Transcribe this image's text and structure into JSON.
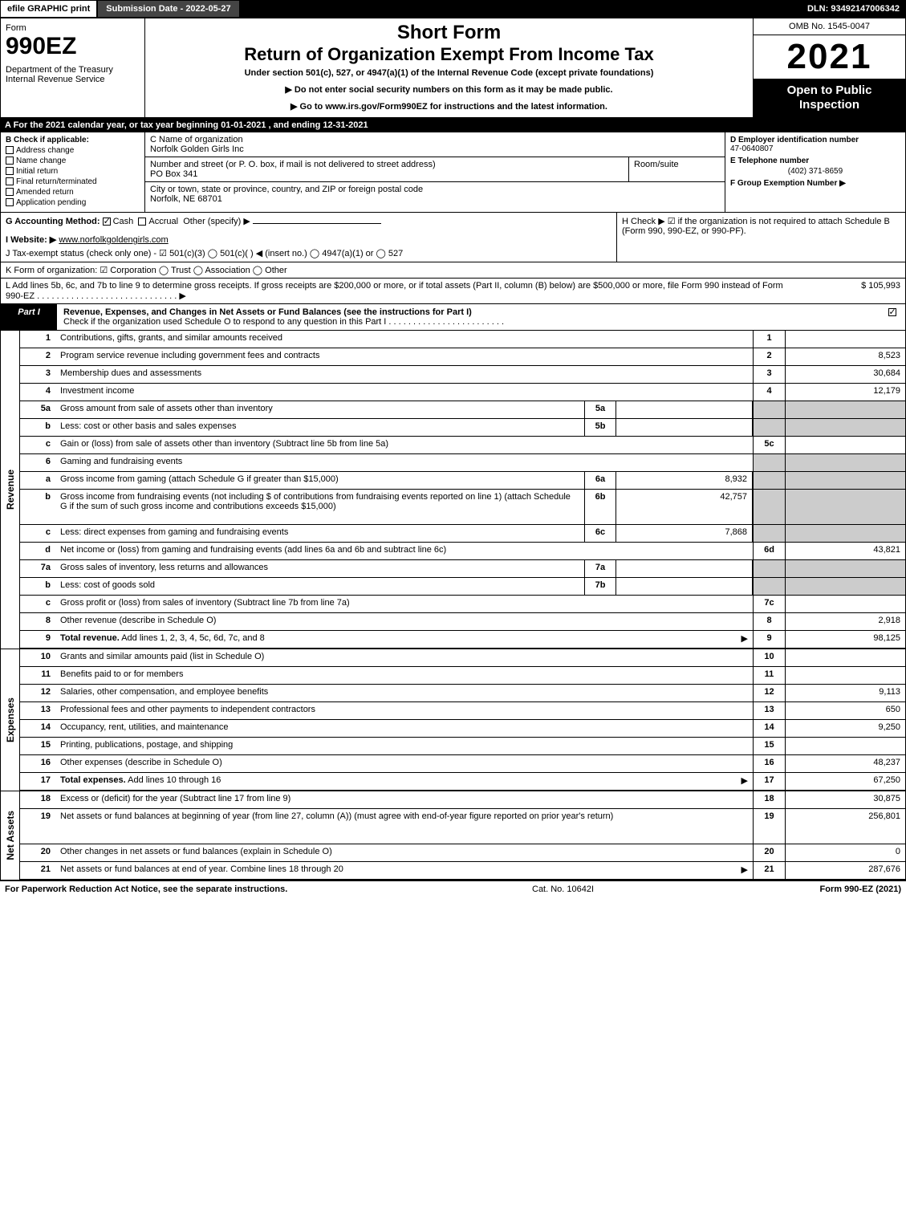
{
  "topbar": {
    "efile": "efile GRAPHIC print",
    "submission": "Submission Date - 2022-05-27",
    "dln": "DLN: 93492147006342"
  },
  "header": {
    "form_word": "Form",
    "form_num": "990EZ",
    "dept": "Department of the Treasury\nInternal Revenue Service",
    "short": "Short Form",
    "return": "Return of Organization Exempt From Income Tax",
    "under": "Under section 501(c), 527, or 4947(a)(1) of the Internal Revenue Code (except private foundations)",
    "note1": "▶ Do not enter social security numbers on this form as it may be made public.",
    "note2": "▶ Go to www.irs.gov/Form990EZ for instructions and the latest information.",
    "omb": "OMB No. 1545-0047",
    "year": "2021",
    "open": "Open to Public Inspection"
  },
  "rowA": "A  For the 2021 calendar year, or tax year beginning 01-01-2021 , and ending 12-31-2021",
  "colB": {
    "title": "B  Check if applicable:",
    "items": [
      "Address change",
      "Name change",
      "Initial return",
      "Final return/terminated",
      "Amended return",
      "Application pending"
    ]
  },
  "colC": {
    "name_label": "C Name of organization",
    "name": "Norfolk Golden Girls Inc",
    "street_label": "Number and street (or P. O. box, if mail is not delivered to street address)",
    "street": "PO Box 341",
    "room_label": "Room/suite",
    "city_label": "City or town, state or province, country, and ZIP or foreign postal code",
    "city": "Norfolk, NE  68701"
  },
  "colD": {
    "ein_label": "D Employer identification number",
    "ein": "47-0640807",
    "tel_label": "E Telephone number",
    "tel": "(402) 371-8659",
    "group_label": "F Group Exemption Number  ▶"
  },
  "rowG": {
    "label": "G Accounting Method:",
    "cash": "Cash",
    "accrual": "Accrual",
    "other": "Other (specify) ▶"
  },
  "rowH": "H  Check ▶ ☑ if the organization is not required to attach Schedule B (Form 990, 990-EZ, or 990-PF).",
  "rowI": {
    "label": "I Website: ▶",
    "value": "www.norfolkgoldengirls.com"
  },
  "rowJ": "J Tax-exempt status (check only one) - ☑ 501(c)(3)  ◯ 501(c)(  ) ◀ (insert no.)  ◯ 4947(a)(1) or  ◯ 527",
  "rowK": "K Form of organization:  ☑ Corporation  ◯ Trust  ◯ Association  ◯ Other",
  "rowL": {
    "text": "L Add lines 5b, 6c, and 7b to line 9 to determine gross receipts. If gross receipts are $200,000 or more, or if total assets (Part II, column (B) below) are $500,000 or more, file Form 990 instead of Form 990-EZ . . . . . . . . . . . . . . . . . . . . . . . . . . . . . ▶",
    "amount": "$ 105,993"
  },
  "part1": {
    "tab": "Part I",
    "title": "Revenue, Expenses, and Changes in Net Assets or Fund Balances (see the instructions for Part I)",
    "sub": "Check if the organization used Schedule O to respond to any question in this Part I . . . . . . . . . . . . . . . . . . . . . . . .",
    "checked": true
  },
  "side_labels": {
    "revenue": "Revenue",
    "expenses": "Expenses",
    "netassets": "Net Assets"
  },
  "lines": [
    {
      "n": "1",
      "desc": "Contributions, gifts, grants, and similar amounts received",
      "rnum": "1",
      "rval": ""
    },
    {
      "n": "2",
      "desc": "Program service revenue including government fees and contracts",
      "rnum": "2",
      "rval": "8,523"
    },
    {
      "n": "3",
      "desc": "Membership dues and assessments",
      "rnum": "3",
      "rval": "30,684"
    },
    {
      "n": "4",
      "desc": "Investment income",
      "rnum": "4",
      "rval": "12,179"
    },
    {
      "n": "5a",
      "desc": "Gross amount from sale of assets other than inventory",
      "mid": "5a",
      "midval": "",
      "shade": true
    },
    {
      "n": "b",
      "desc": "Less: cost or other basis and sales expenses",
      "mid": "5b",
      "midval": "",
      "shade": true
    },
    {
      "n": "c",
      "desc": "Gain or (loss) from sale of assets other than inventory (Subtract line 5b from line 5a)",
      "rnum": "5c",
      "rval": ""
    },
    {
      "n": "6",
      "desc": "Gaming and fundraising events",
      "shade": true,
      "norline": true
    },
    {
      "n": "a",
      "desc": "Gross income from gaming (attach Schedule G if greater than $15,000)",
      "mid": "6a",
      "midval": "8,932",
      "shade": true
    },
    {
      "n": "b",
      "desc": "Gross income from fundraising events (not including $                    of contributions from fundraising events reported on line 1) (attach Schedule G if the sum of such gross income and contributions exceeds $15,000)",
      "mid": "6b",
      "midval": "42,757",
      "shade": true,
      "tall": true
    },
    {
      "n": "c",
      "desc": "Less: direct expenses from gaming and fundraising events",
      "mid": "6c",
      "midval": "7,868",
      "shade": true
    },
    {
      "n": "d",
      "desc": "Net income or (loss) from gaming and fundraising events (add lines 6a and 6b and subtract line 6c)",
      "rnum": "6d",
      "rval": "43,821"
    },
    {
      "n": "7a",
      "desc": "Gross sales of inventory, less returns and allowances",
      "mid": "7a",
      "midval": "",
      "shade": true
    },
    {
      "n": "b",
      "desc": "Less: cost of goods sold",
      "mid": "7b",
      "midval": "",
      "shade": true
    },
    {
      "n": "c",
      "desc": "Gross profit or (loss) from sales of inventory (Subtract line 7b from line 7a)",
      "rnum": "7c",
      "rval": ""
    },
    {
      "n": "8",
      "desc": "Other revenue (describe in Schedule O)",
      "rnum": "8",
      "rval": "2,918"
    },
    {
      "n": "9",
      "desc": "Total revenue. Add lines 1, 2, 3, 4, 5c, 6d, 7c, and 8",
      "rnum": "9",
      "rval": "98,125",
      "bold": true,
      "arrow": true
    }
  ],
  "exp_lines": [
    {
      "n": "10",
      "desc": "Grants and similar amounts paid (list in Schedule O)",
      "rnum": "10",
      "rval": ""
    },
    {
      "n": "11",
      "desc": "Benefits paid to or for members",
      "rnum": "11",
      "rval": ""
    },
    {
      "n": "12",
      "desc": "Salaries, other compensation, and employee benefits",
      "rnum": "12",
      "rval": "9,113"
    },
    {
      "n": "13",
      "desc": "Professional fees and other payments to independent contractors",
      "rnum": "13",
      "rval": "650"
    },
    {
      "n": "14",
      "desc": "Occupancy, rent, utilities, and maintenance",
      "rnum": "14",
      "rval": "9,250"
    },
    {
      "n": "15",
      "desc": "Printing, publications, postage, and shipping",
      "rnum": "15",
      "rval": ""
    },
    {
      "n": "16",
      "desc": "Other expenses (describe in Schedule O)",
      "rnum": "16",
      "rval": "48,237"
    },
    {
      "n": "17",
      "desc": "Total expenses. Add lines 10 through 16",
      "rnum": "17",
      "rval": "67,250",
      "bold": true,
      "arrow": true
    }
  ],
  "net_lines": [
    {
      "n": "18",
      "desc": "Excess or (deficit) for the year (Subtract line 17 from line 9)",
      "rnum": "18",
      "rval": "30,875"
    },
    {
      "n": "19",
      "desc": "Net assets or fund balances at beginning of year (from line 27, column (A)) (must agree with end-of-year figure reported on prior year's return)",
      "rnum": "19",
      "rval": "256,801",
      "tall": true
    },
    {
      "n": "20",
      "desc": "Other changes in net assets or fund balances (explain in Schedule O)",
      "rnum": "20",
      "rval": "0"
    },
    {
      "n": "21",
      "desc": "Net assets or fund balances at end of year. Combine lines 18 through 20",
      "rnum": "21",
      "rval": "287,676",
      "arrow": true
    }
  ],
  "footer": {
    "left": "For Paperwork Reduction Act Notice, see the separate instructions.",
    "center": "Cat. No. 10642I",
    "right": "Form 990-EZ (2021)"
  },
  "colors": {
    "black": "#000000",
    "white": "#ffffff",
    "shade": "#cccccc",
    "topbar_mid": "#444444"
  }
}
